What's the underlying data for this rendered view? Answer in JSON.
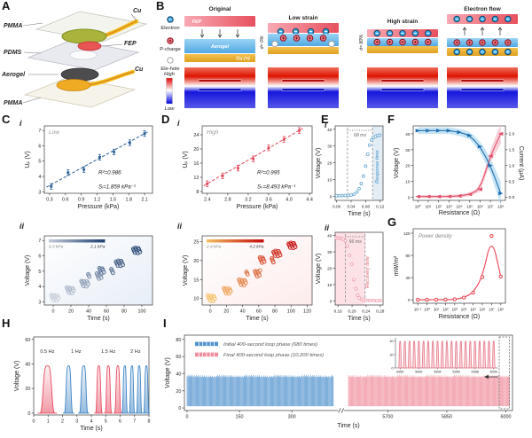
{
  "panels": {
    "A": {
      "label": "A",
      "layer_labels_left": [
        "PMMA",
        "PDMS",
        "Aerogel",
        "PMMA"
      ],
      "layer_labels_right": [
        "Cu",
        "FEP",
        "Cu"
      ]
    },
    "B": {
      "label": "B",
      "legend": [
        {
          "name": "electron",
          "label": "Electron"
        },
        {
          "name": "p-charge",
          "label": "P-charge"
        },
        {
          "name": "ele-hole",
          "label": "Ele-hole"
        }
      ],
      "colorbar": {
        "high": "High",
        "low": "Low"
      },
      "states": [
        {
          "title": "Original",
          "layers": [
            "FEP",
            "Aerogel",
            "Cu (+)"
          ]
        },
        {
          "title": "Low strain",
          "strain": "d= 0%"
        },
        {
          "title": "High strain",
          "strain": "d= 80%"
        },
        {
          "title": "Electron flow"
        }
      ]
    },
    "C": {
      "label": "C",
      "sub1": "i",
      "sub2": "ii"
    },
    "D": {
      "label": "D",
      "sub1": "i",
      "sub2": "ii"
    },
    "E": {
      "label": "E",
      "sub1": "i",
      "sub2": "ii"
    },
    "F": {
      "label": "F"
    },
    "G": {
      "label": "G"
    },
    "H": {
      "label": "H"
    },
    "I": {
      "label": "I"
    }
  },
  "chart_data": {
    "Ci": {
      "type": "scatter",
      "note": "Low",
      "xlabel": "Pressure (kPa)",
      "ylabel": "Uₚ (V)",
      "xlim": [
        0.2,
        2.25
      ],
      "ylim": [
        2.9,
        7.3
      ],
      "xticks": [
        0.3,
        0.6,
        0.9,
        1.2,
        1.5,
        1.8,
        2.1
      ],
      "xdec": 1,
      "yticks": [
        3,
        4,
        5,
        6,
        7
      ],
      "points": [
        [
          0.33,
          3.35
        ],
        [
          0.65,
          4.25
        ],
        [
          0.95,
          4.45
        ],
        [
          1.25,
          5.25
        ],
        [
          1.52,
          5.6
        ],
        [
          1.82,
          6.2
        ],
        [
          2.1,
          6.8
        ]
      ],
      "err": 0.18,
      "fit": [
        [
          0.24,
          3.3
        ],
        [
          2.18,
          6.95
        ]
      ],
      "r2": "R²=0.986",
      "s": "Sₗ=1.859 kPa⁻¹",
      "color": "#2a5f96"
    },
    "Cii": {
      "type": "clusters",
      "xlabel": "Time (s)",
      "ylabel": "Voltage (V)",
      "xlim": [
        -10,
        112
      ],
      "ylim": [
        2.8,
        7.3
      ],
      "xticks": [
        0,
        20,
        40,
        60,
        80,
        100
      ],
      "yticks": [
        3,
        4,
        5,
        6,
        7
      ],
      "legend_from": "0.3 kPa",
      "legend_to": "2.1 kPa",
      "grad": [
        "#c3cbd8",
        "#1e3f6f"
      ],
      "bg": [
        "#ffffff",
        "#e7eef7"
      ],
      "clusters": [
        [
          6,
          3.25
        ],
        [
          20,
          3.75
        ],
        [
          33,
          4.2
        ],
        [
          47,
          4.7
        ],
        [
          60,
          5.0
        ],
        [
          78,
          5.5
        ],
        [
          94,
          6.35
        ]
      ]
    },
    "Di": {
      "type": "scatter",
      "note": "High",
      "xlabel": "Pressure (kPa)",
      "ylabel": "Uₚ (V)",
      "xlim": [
        2.3,
        4.45
      ],
      "ylim": [
        7.5,
        26.5
      ],
      "xticks": [
        2.4,
        2.8,
        3.2,
        3.6,
        4.0,
        4.4
      ],
      "xdec": 1,
      "yticks": [
        8,
        12,
        16,
        20,
        24
      ],
      "points": [
        [
          2.4,
          10.2
        ],
        [
          2.7,
          12.4
        ],
        [
          3.0,
          14.6
        ],
        [
          3.3,
          17.2
        ],
        [
          3.6,
          20.3
        ],
        [
          3.9,
          22.7
        ],
        [
          4.2,
          25.2
        ]
      ],
      "err": 0.8,
      "fit": [
        [
          2.33,
          9.6
        ],
        [
          4.27,
          25.8
        ]
      ],
      "r2": "R²=0.995",
      "s": "Sₕ=8.493 kPa⁻¹",
      "color": "#e0485a"
    },
    "Dii": {
      "type": "clusters",
      "xlabel": "Time (s)",
      "ylabel": "Voltage (V)",
      "xlim": [
        -10,
        126
      ],
      "ylim": [
        8.3,
        26.5
      ],
      "xticks": [
        0,
        20,
        40,
        60,
        80,
        100,
        120
      ],
      "yticks": [
        10,
        15,
        20,
        25
      ],
      "legend_from": "2.4 kPa",
      "legend_to": "4.2 kPa",
      "grad": [
        "#f6bd60",
        "#c40a0a"
      ],
      "bg": [
        "#ffffff",
        "#fdecec"
      ],
      "clusters": [
        [
          6,
          10
        ],
        [
          22,
          12
        ],
        [
          37,
          14.3
        ],
        [
          53,
          16.6
        ],
        [
          70,
          20
        ],
        [
          86,
          21.8
        ],
        [
          101,
          24
        ]
      ]
    },
    "Ei": {
      "type": "step",
      "xlabel": "Time (s)",
      "ylabel": "Voltage (V)",
      "xlim": [
        -0.004,
        0.128
      ],
      "ylim": [
        -2.5,
        42
      ],
      "xticks": [
        0,
        0.04,
        0.08,
        0.12
      ],
      "xdec": 2,
      "yticks": [
        0,
        10,
        20,
        30,
        40
      ],
      "marks": [
        0.03,
        0.099
      ],
      "mlabel": "68 ms",
      "side": "Response time",
      "side_color": "#3d8fc4",
      "side_pos": 0.91,
      "color": "#74aed2",
      "shade": [
        0.099,
        0.128
      ],
      "shade_color": "#ddeaf5",
      "points": [
        [
          0,
          0.3
        ],
        [
          0.008,
          0.3
        ],
        [
          0.016,
          0.4
        ],
        [
          0.024,
          0.4
        ],
        [
          0.032,
          0.5
        ],
        [
          0.04,
          0.7
        ],
        [
          0.048,
          1.2
        ],
        [
          0.056,
          2.5
        ],
        [
          0.062,
          4.5
        ],
        [
          0.068,
          7.5
        ],
        [
          0.074,
          12
        ],
        [
          0.08,
          18
        ],
        [
          0.086,
          25
        ],
        [
          0.091,
          30.5
        ],
        [
          0.096,
          33.5
        ],
        [
          0.101,
          35
        ],
        [
          0.107,
          35.8
        ],
        [
          0.113,
          36.2
        ],
        [
          0.119,
          36.5
        ]
      ]
    },
    "Eii": {
      "type": "step",
      "xlabel": "Time (s)",
      "ylabel": "Voltage (V)",
      "xlim": [
        0.152,
        0.288
      ],
      "ylim": [
        -2.5,
        42
      ],
      "xticks": [
        0.16,
        0.2,
        0.24,
        0.28
      ],
      "xdec": 2,
      "yticks": [
        0,
        10,
        20,
        30,
        40
      ],
      "marks": [
        0.181,
        0.237
      ],
      "mlabel": "56 ms",
      "side": "Recovery time",
      "side_color": "#e05a6a",
      "side_pos": 0.7,
      "color": "#f0a4b2",
      "shade": [
        0.152,
        0.237
      ],
      "shade_color": "#fbdce2",
      "points": [
        [
          0.155,
          38.6
        ],
        [
          0.16,
          38.6
        ],
        [
          0.165,
          38.4
        ],
        [
          0.17,
          38.2
        ],
        [
          0.175,
          37.8
        ],
        [
          0.181,
          36.8
        ],
        [
          0.187,
          33.5
        ],
        [
          0.193,
          28
        ],
        [
          0.199,
          22.5
        ],
        [
          0.205,
          13
        ],
        [
          0.211,
          7.5
        ],
        [
          0.216,
          3.5
        ],
        [
          0.221,
          1.8
        ],
        [
          0.227,
          1.0
        ],
        [
          0.233,
          0.6
        ],
        [
          0.24,
          0.4
        ],
        [
          0.25,
          0.3
        ],
        [
          0.26,
          0.3
        ],
        [
          0.27,
          0.2
        ],
        [
          0.28,
          0.2
        ]
      ]
    },
    "F": {
      "type": "dual",
      "xlabel": "Resistance (Ω)",
      "ylabel": "Voltage (V)",
      "y2label": "Current (µA)",
      "xticks": [
        "10⁰",
        "10¹",
        "10²",
        "10³",
        "10⁴",
        "10⁵",
        "10⁶",
        "10⁷",
        "10⁸"
      ],
      "yticks": [
        0,
        10,
        20,
        30,
        40
      ],
      "y2ticks": [
        0,
        0.5,
        1,
        1.5,
        2
      ],
      "ylim": [
        -2,
        45
      ],
      "y2lim": [
        -0.1,
        2.25
      ],
      "voltage": [
        0.4,
        0.4,
        0.4,
        0.5,
        0.8,
        1.8,
        5,
        26,
        40
      ],
      "current": [
        2.1,
        2.1,
        2.1,
        2.1,
        2.05,
        1.95,
        1.6,
        1.0,
        0.12
      ],
      "v_color": "#e0506a",
      "c_color": "#1a6cae",
      "v_band": "#f5bfcb",
      "c_band": "#b4dbf2"
    },
    "G": {
      "type": "logline",
      "xlabel": "Resistance (Ω)",
      "ylabel": "mW/m²",
      "note": "Power density",
      "xticks": [
        "10⁻¹",
        "10⁰",
        "10¹",
        "10²",
        "10³",
        "10⁴",
        "10⁵",
        "10⁶",
        "10⁷",
        "10⁸"
      ],
      "yticks": [
        0,
        40,
        80,
        120
      ],
      "ylim": [
        -6,
        128
      ],
      "values": [
        0.3,
        0.3,
        0.4,
        0.5,
        1,
        4,
        13,
        41,
        115,
        42
      ],
      "color": "#e8404f"
    },
    "H": {
      "type": "pulses",
      "xlabel": "Time (s)",
      "ylabel": "Voltage (V)",
      "xlim": [
        0,
        8
      ],
      "ylim": [
        -1.5,
        62
      ],
      "xticks": [
        0,
        1,
        2,
        3,
        4,
        5,
        6,
        7,
        8
      ],
      "yticks": [
        0,
        20,
        40,
        60
      ],
      "amp": 38.5,
      "red": "#e8485e",
      "blue": "#3d83c4",
      "groups": [
        {
          "label": "0.5 Hz",
          "color": "red",
          "centers": [
            0.95
          ],
          "hw": 0.26
        },
        {
          "label": "1 Hz",
          "color": "blue",
          "centers": [
            2.42,
            3.47
          ],
          "hw": 0.15
        },
        {
          "label": "1.5 Hz",
          "color": "red",
          "centers": [
            4.52,
            5.18,
            5.84
          ],
          "hw": 0.115
        },
        {
          "label": "2 Hz",
          "color": "blue",
          "centers": [
            6.32,
            6.82,
            7.32,
            7.82
          ],
          "hw": 0.095
        }
      ]
    },
    "I": {
      "type": "endurance",
      "xlabel": "Time (s)",
      "ylabel": "Voltage (V)",
      "yticks": [
        0,
        20,
        40,
        60,
        80
      ],
      "ylim": [
        -3,
        85
      ],
      "amp": 38,
      "blue": "#3f86c6",
      "blue_fill": "#8fb9e4",
      "red": "#ee8494",
      "red_fill": "#f6b6bf",
      "legend": [
        {
          "label": "Initial 400-second loop phase (680 times)",
          "color": "#3f86c6"
        },
        {
          "label": "Final 400-second loop phase (10,200 times)",
          "color": "#ee8494"
        }
      ],
      "blue_domain": [
        0,
        420
      ],
      "blue_ticks": [
        0,
        150,
        300
      ],
      "red_domain": [
        5600,
        6010
      ],
      "red_ticks": [
        5700,
        5850,
        6000
      ],
      "inset": {
        "xticks": [
          5990,
          5992,
          5994,
          5996,
          5998,
          6000
        ],
        "yticks": [
          0,
          20,
          40
        ],
        "ymax": 45,
        "period": 0.5,
        "hw": 0.08
      }
    }
  }
}
